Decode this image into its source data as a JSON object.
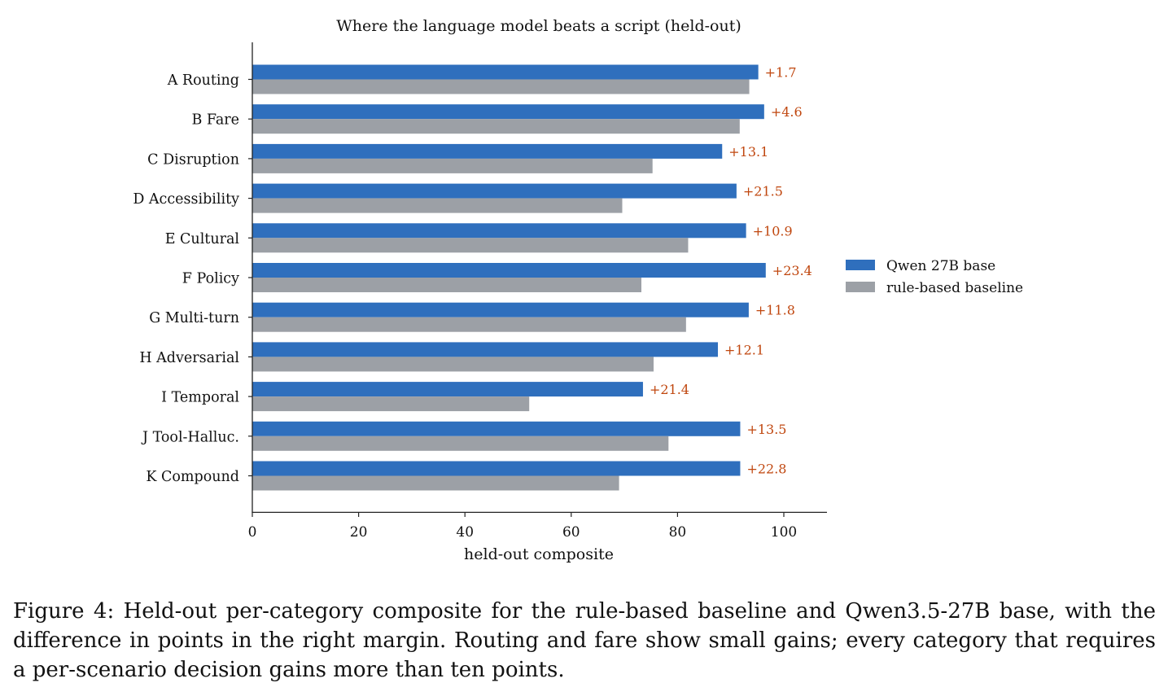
{
  "chart_data": {
    "type": "bar",
    "orientation": "horizontal",
    "title": "Where the language model beats a script (held-out)",
    "xlabel": "held-out composite",
    "ylabel": "",
    "xlim": [
      0,
      108
    ],
    "xticks": [
      0,
      20,
      40,
      60,
      80,
      100
    ],
    "grid": false,
    "legend_position": "right",
    "categories": [
      "A Routing",
      "B Fare",
      "C Disruption",
      "D Accessibility",
      "E Cultural",
      "F Policy",
      "G Multi-turn",
      "H Adversarial",
      "I Temporal",
      "J Tool-Halluc.",
      "K Compound"
    ],
    "series": [
      {
        "name": "Qwen 27B base",
        "color": "#2f6fbd",
        "values": [
          95.2,
          96.3,
          88.4,
          91.1,
          92.9,
          96.6,
          93.4,
          87.6,
          73.5,
          91.8,
          91.8
        ]
      },
      {
        "name": "rule-based baseline",
        "color": "#9ca0a6",
        "values": [
          93.5,
          91.7,
          75.3,
          69.6,
          82.0,
          73.2,
          81.6,
          75.5,
          52.1,
          78.3,
          69.0
        ]
      }
    ],
    "annotations": [
      "+1.7",
      "+4.6",
      "+13.1",
      "+21.5",
      "+10.9",
      "+23.4",
      "+11.8",
      "+12.1",
      "+21.4",
      "+13.5",
      "+22.8"
    ],
    "annotation_color": "#c0470f"
  },
  "caption": "Figure 4: Held-out per-category composite for the rule-based baseline and Qwen3.5-27B base, with the difference in points in the right margin. Routing and fare show small gains; every category that requires a per-scenario decision gains more than ten points."
}
